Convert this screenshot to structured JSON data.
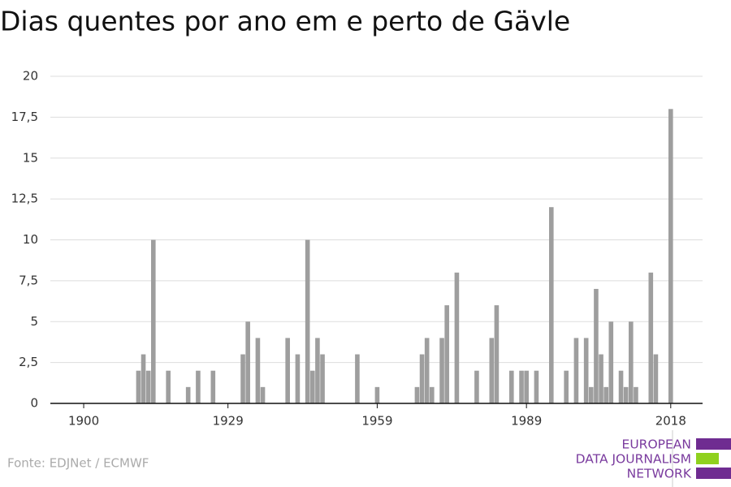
{
  "chart_data": {
    "type": "bar",
    "title": "Dias quentes por ano em e perto de Gävle",
    "x": [
      1911,
      1912,
      1913,
      1914,
      1917,
      1921,
      1923,
      1926,
      1932,
      1933,
      1935,
      1936,
      1941,
      1943,
      1945,
      1946,
      1947,
      1948,
      1955,
      1959,
      1967,
      1968,
      1969,
      1970,
      1972,
      1973,
      1975,
      1979,
      1982,
      1983,
      1986,
      1988,
      1989,
      1991,
      1994,
      1997,
      1999,
      2001,
      2002,
      2003,
      2004,
      2005,
      2006,
      2008,
      2009,
      2010,
      2011,
      2014,
      2015,
      2018
    ],
    "values": [
      2,
      3,
      2,
      10,
      2,
      1,
      2,
      2,
      3,
      5,
      4,
      1,
      4,
      3,
      10,
      2,
      4,
      3,
      3,
      1,
      1,
      3,
      4,
      1,
      4,
      6,
      8,
      2,
      4,
      6,
      2,
      2,
      2,
      2,
      12,
      2,
      4,
      4,
      1,
      7,
      3,
      1,
      5,
      2,
      1,
      5,
      1,
      8,
      3,
      18
    ],
    "color": "#9e9e9e",
    "xlim": [
      1893.3,
      2024.4
    ],
    "xticks": [
      1900,
      1929,
      1959,
      1989,
      2018
    ],
    "ylim": [
      0,
      20
    ],
    "yticks": [
      0,
      {
        "value": 2.5,
        "label": "2,5"
      },
      5,
      {
        "value": 7.5,
        "label": "7,5"
      },
      10,
      {
        "value": 12.5,
        "label": "12,5"
      },
      15,
      {
        "value": 17.5,
        "label": "17,5"
      },
      20
    ],
    "grid": true,
    "source": "Fonte: EDJNet / ECMWF",
    "logo_lines": [
      "EUROPEAN",
      "DATA JOURNALISM",
      "NETWORK"
    ]
  }
}
